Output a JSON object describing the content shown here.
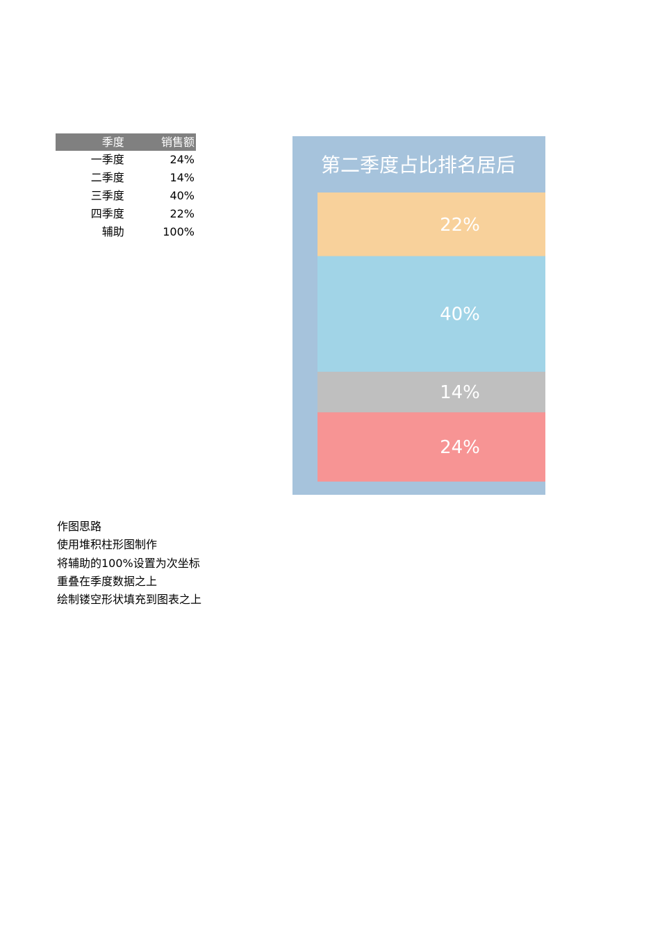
{
  "table": {
    "headers": [
      "季度",
      "销售额"
    ],
    "rows": [
      [
        "一季度",
        "24%"
      ],
      [
        "二季度",
        "14%"
      ],
      [
        "三季度",
        "40%"
      ],
      [
        "四季度",
        "22%"
      ],
      [
        "辅助",
        "100%"
      ]
    ]
  },
  "notes": [
    "作图思路",
    "使用堆积柱形图制作",
    "将辅助的100%设置为次坐标",
    "重叠在季度数据之上",
    "绘制镂空形状填充到图表之上"
  ],
  "colors": {
    "chart_background": "#a6c3dc",
    "text_on_chart": "#ffffff",
    "header_fill": "#808080"
  },
  "chart_data": {
    "type": "bar",
    "stacked": true,
    "title": "第二季度占比排名居后",
    "categories": [
      "一季度",
      "二季度",
      "三季度",
      "四季度"
    ],
    "values": [
      24,
      14,
      40,
      22
    ],
    "labels": [
      "24%",
      "14%",
      "40%",
      "22%"
    ],
    "segment_colors": [
      "#f79494",
      "#bfbfbf",
      "#a1d4e7",
      "#f8d19b"
    ],
    "secondary_helper": {
      "name": "辅助",
      "value": 100,
      "label": "100%"
    },
    "ylim": [
      0,
      100
    ],
    "axes_visible": false,
    "grid": false,
    "legend": "none"
  }
}
